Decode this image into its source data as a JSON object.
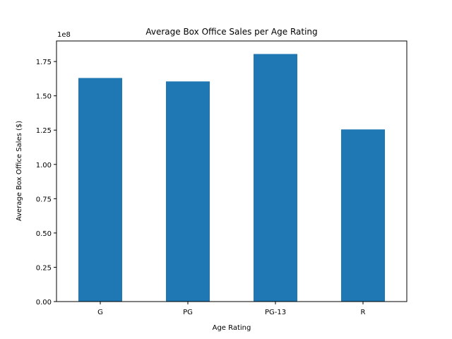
{
  "chart_data": {
    "type": "bar",
    "title": "Average Box Office Sales per Age Rating",
    "xlabel": "Age Rating",
    "ylabel": "Average Box Office Sales ($)",
    "y_offset_label": "1e8",
    "categories": [
      "G",
      "PG",
      "PG-13",
      "R"
    ],
    "values": [
      163000000,
      160500000,
      180500000,
      125500000
    ],
    "ylim": [
      0,
      190000000
    ],
    "yticks": [
      0,
      25000000,
      50000000,
      75000000,
      100000000,
      125000000,
      150000000,
      175000000
    ],
    "ytick_labels": [
      "0.00",
      "0.25",
      "0.50",
      "0.75",
      "1.00",
      "1.25",
      "1.50",
      "1.75"
    ],
    "bar_color": "#1f77b4",
    "grid": false,
    "legend": "none"
  }
}
